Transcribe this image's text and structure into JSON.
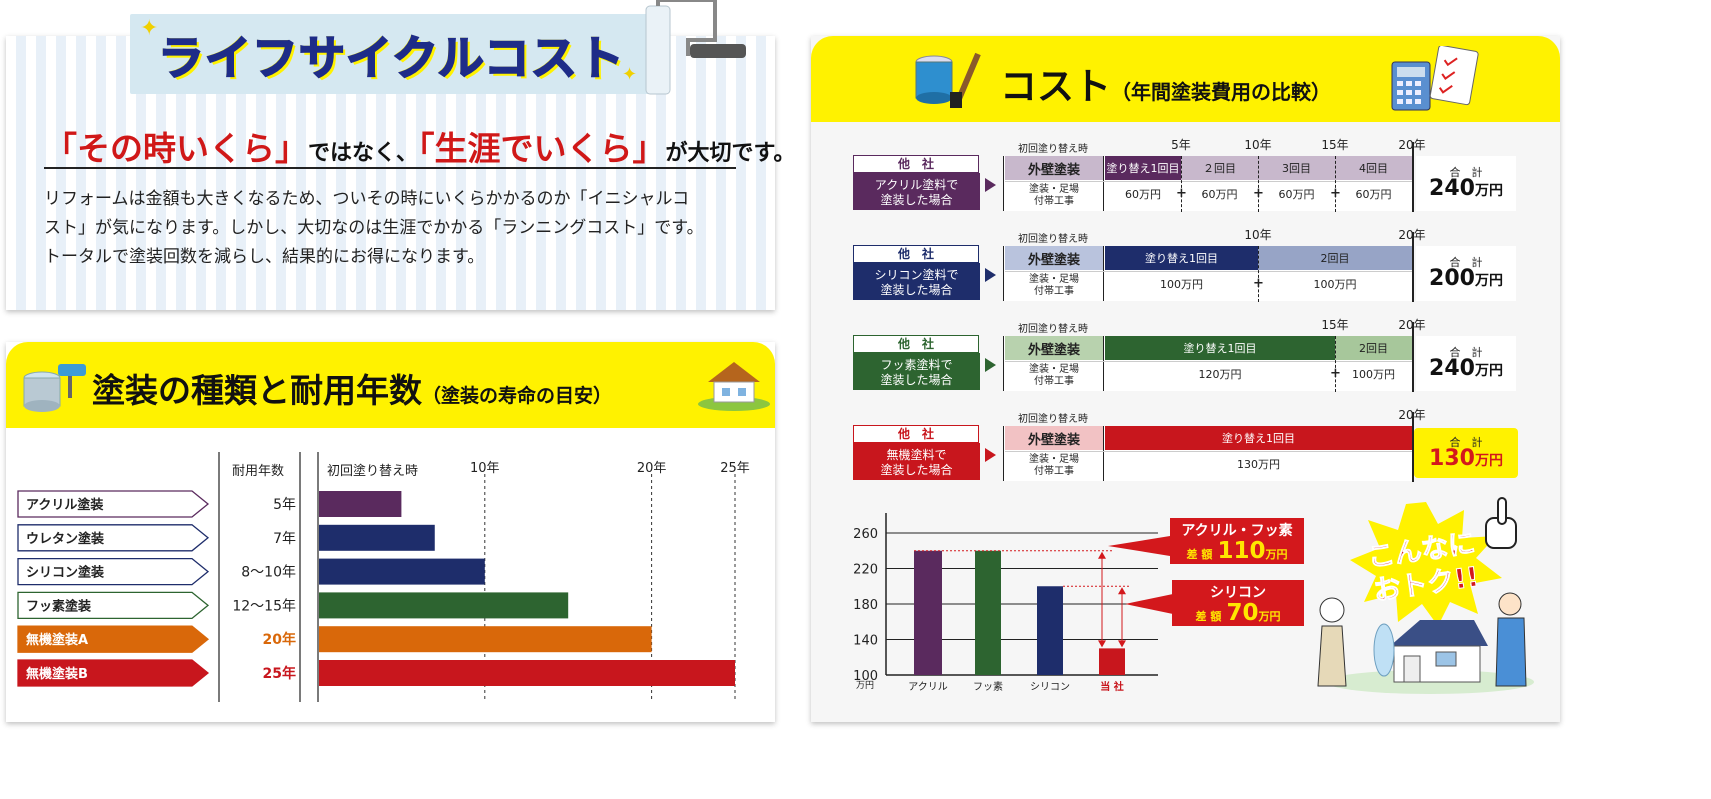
{
  "lifecycle": {
    "banner_title": "ライフサイクルコスト",
    "headline": {
      "red1": "「その時いくら」",
      "black1": "ではなく、",
      "red2": "「生涯でいくら」",
      "black2": "が大切です。"
    },
    "body": [
      "リフォームは金額も大きくなるため、ついその時にいくらかかるのか「イニシャルコ",
      "スト」が気になります。しかし、大切なのは生涯でかかる「ランニングコスト」です。",
      "トータルで塗装回数を減らし、結果的にお得になります。"
    ]
  },
  "durability": {
    "title": "塗装の種類と耐用年数",
    "subtitle": "（塗装の寿命の目安）"
  },
  "cost_panel": {
    "title": "コスト",
    "subtitle": "（年間塗装費用の比較）",
    "rows": [
      {
        "company": "他　社",
        "desc1": "アクリル塗料で",
        "desc2": "塗装した場合",
        "first_label": "初回塗り替え時",
        "year_marks": [
          "5年",
          "10年",
          "15年",
          "20年"
        ],
        "wall_label": "外壁塗装",
        "scaffold1": "塗装・足場",
        "scaffold2": "付帯工事",
        "segments": [
          "塗り替え1回目",
          "２回目",
          "3回目",
          "4回目"
        ],
        "costs": [
          "60万円",
          "60万円",
          "60万円",
          "60万円"
        ],
        "total_label": "合　計",
        "total_num": "240",
        "total_unit": "万円"
      },
      {
        "company": "他　社",
        "desc1": "シリコン塗料で",
        "desc2": "塗装した場合",
        "first_label": "初回塗り替え時",
        "year_marks": [
          "10年",
          "20年"
        ],
        "wall_label": "外壁塗装",
        "scaffold1": "塗装・足場",
        "scaffold2": "付帯工事",
        "segments": [
          "塗り替え1回目",
          "2回目"
        ],
        "costs": [
          "100万円",
          "100万円"
        ],
        "total_label": "合　計",
        "total_num": "200",
        "total_unit": "万円"
      },
      {
        "company": "他　社",
        "desc1": "フッ素塗料で",
        "desc2": "塗装した場合",
        "first_label": "初回塗り替え時",
        "year_marks": [
          "15年",
          "20年"
        ],
        "wall_label": "外壁塗装",
        "scaffold1": "塗装・足場",
        "scaffold2": "付帯工事",
        "segments": [
          "塗り替え1回目",
          "2回目"
        ],
        "costs": [
          "120万円",
          "100万円"
        ],
        "total_label": "合　計",
        "total_num": "240",
        "total_unit": "万円"
      },
      {
        "company": "他　社",
        "desc1": "無機塗料で",
        "desc2": "塗装した場合",
        "first_label": "初回塗り替え時",
        "year_marks": [
          "20年"
        ],
        "wall_label": "外壁塗装",
        "scaffold1": "塗装・足場",
        "scaffold2": "付帯工事",
        "segments": [
          "塗り替え1回目"
        ],
        "costs": [
          "130万円"
        ],
        "total_label": "合　計",
        "total_num": "130",
        "total_unit": "万円"
      }
    ],
    "callouts": [
      {
        "name": "アクリル・フッ素",
        "prefix": "差 額",
        "num": "110",
        "unit": "万円"
      },
      {
        "name": "シリコン",
        "prefix": "差 額",
        "num": "70",
        "unit": "万円"
      }
    ],
    "promo_line1": "こんなに",
    "promo_line2": "おトク!!"
  },
  "chart_data": [
    {
      "type": "bar",
      "orientation": "horizontal",
      "column_headers": {
        "label_years": "耐用年数",
        "axis_title": "初回塗り替え時"
      },
      "categories": [
        "アクリル塗装",
        "ウレタン塗装",
        "シリコン塗装",
        "フッ素塗装",
        "無機塗装A",
        "無機塗装B"
      ],
      "year_labels": [
        "5年",
        "7年",
        "8〜10年",
        "12〜15年",
        "20年",
        "25年"
      ],
      "values": [
        5,
        7,
        10,
        15,
        20,
        25
      ],
      "colors": [
        "#5a2a5e",
        "#1e2d6b",
        "#1e2d6b",
        "#2d6430",
        "#d9680a",
        "#c8161d"
      ],
      "tick_values": [
        10,
        20,
        25
      ],
      "tick_labels": [
        "10年",
        "20年",
        "25年"
      ],
      "xlim": [
        0,
        25
      ],
      "grid": "dashed at ticks"
    },
    {
      "type": "bar",
      "categories": [
        "アクリル",
        "フッ素",
        "シリコン",
        "当 社"
      ],
      "values": [
        240,
        240,
        200,
        130
      ],
      "colors": [
        "#5a2a5e",
        "#2d6430",
        "#1e2d6b",
        "#c8161d"
      ],
      "y_ticks": [
        100,
        140,
        180,
        220,
        260
      ],
      "y_unit": "万円",
      "ylim": [
        100,
        260
      ],
      "grid": "horizontal lines"
    }
  ]
}
